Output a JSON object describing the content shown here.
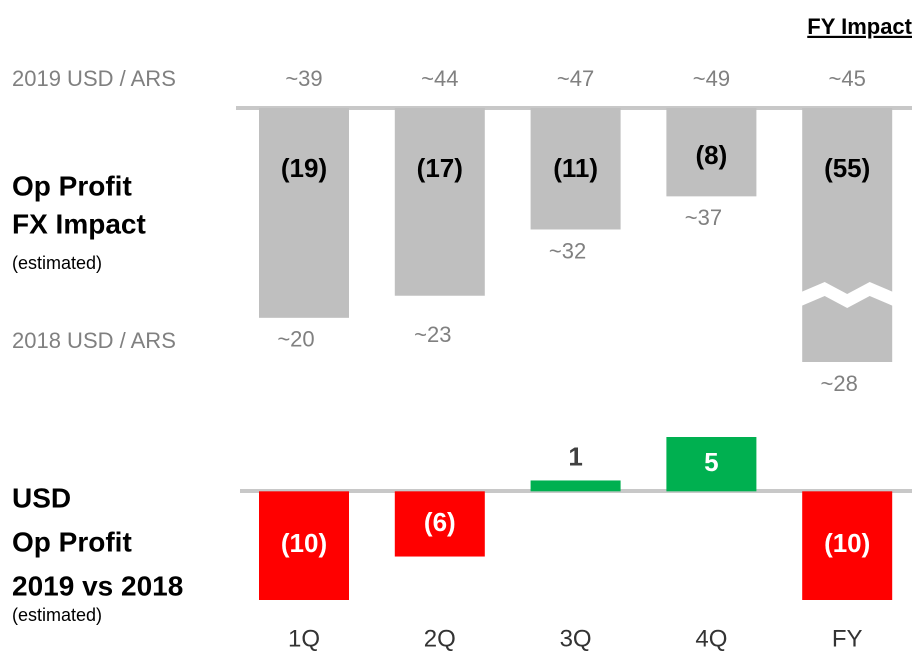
{
  "header": "FY Impact",
  "chart_data": [
    {
      "type": "bar",
      "title": [
        "Op Profit",
        "FX Impact"
      ],
      "subtitle": "(estimated)",
      "values": [
        -19,
        -17,
        -11,
        -8,
        -55
      ],
      "value_labels": [
        "(19)",
        "(17)",
        "(11)",
        "(8)",
        "(55)"
      ],
      "color": "#bfbfbf",
      "ylim": [
        -23,
        0
      ],
      "axis_break": true,
      "rate_rows": [
        {
          "name": "2019 USD / ARS",
          "labels": [
            "~39",
            "~44",
            "~47",
            "~49",
            "~45"
          ]
        },
        {
          "name": "2018 USD / ARS",
          "labels": [
            "~20",
            "~23",
            "~32",
            "~37",
            "~28"
          ]
        }
      ]
    },
    {
      "type": "bar",
      "title": [
        "USD",
        "Op Profit",
        "2019 vs 2018"
      ],
      "subtitle": "(estimated)",
      "categories": [
        "1Q",
        "2Q",
        "3Q",
        "4Q",
        "FY"
      ],
      "values": [
        -10,
        -6,
        1,
        5,
        -10
      ],
      "value_labels": [
        "(10)",
        "(6)",
        "1",
        "5",
        "(10)"
      ],
      "colors": [
        "#ff0000",
        "#ff0000",
        "#00b050",
        "#00b050",
        "#ff0000"
      ],
      "ylim": [
        -10,
        5
      ]
    }
  ]
}
